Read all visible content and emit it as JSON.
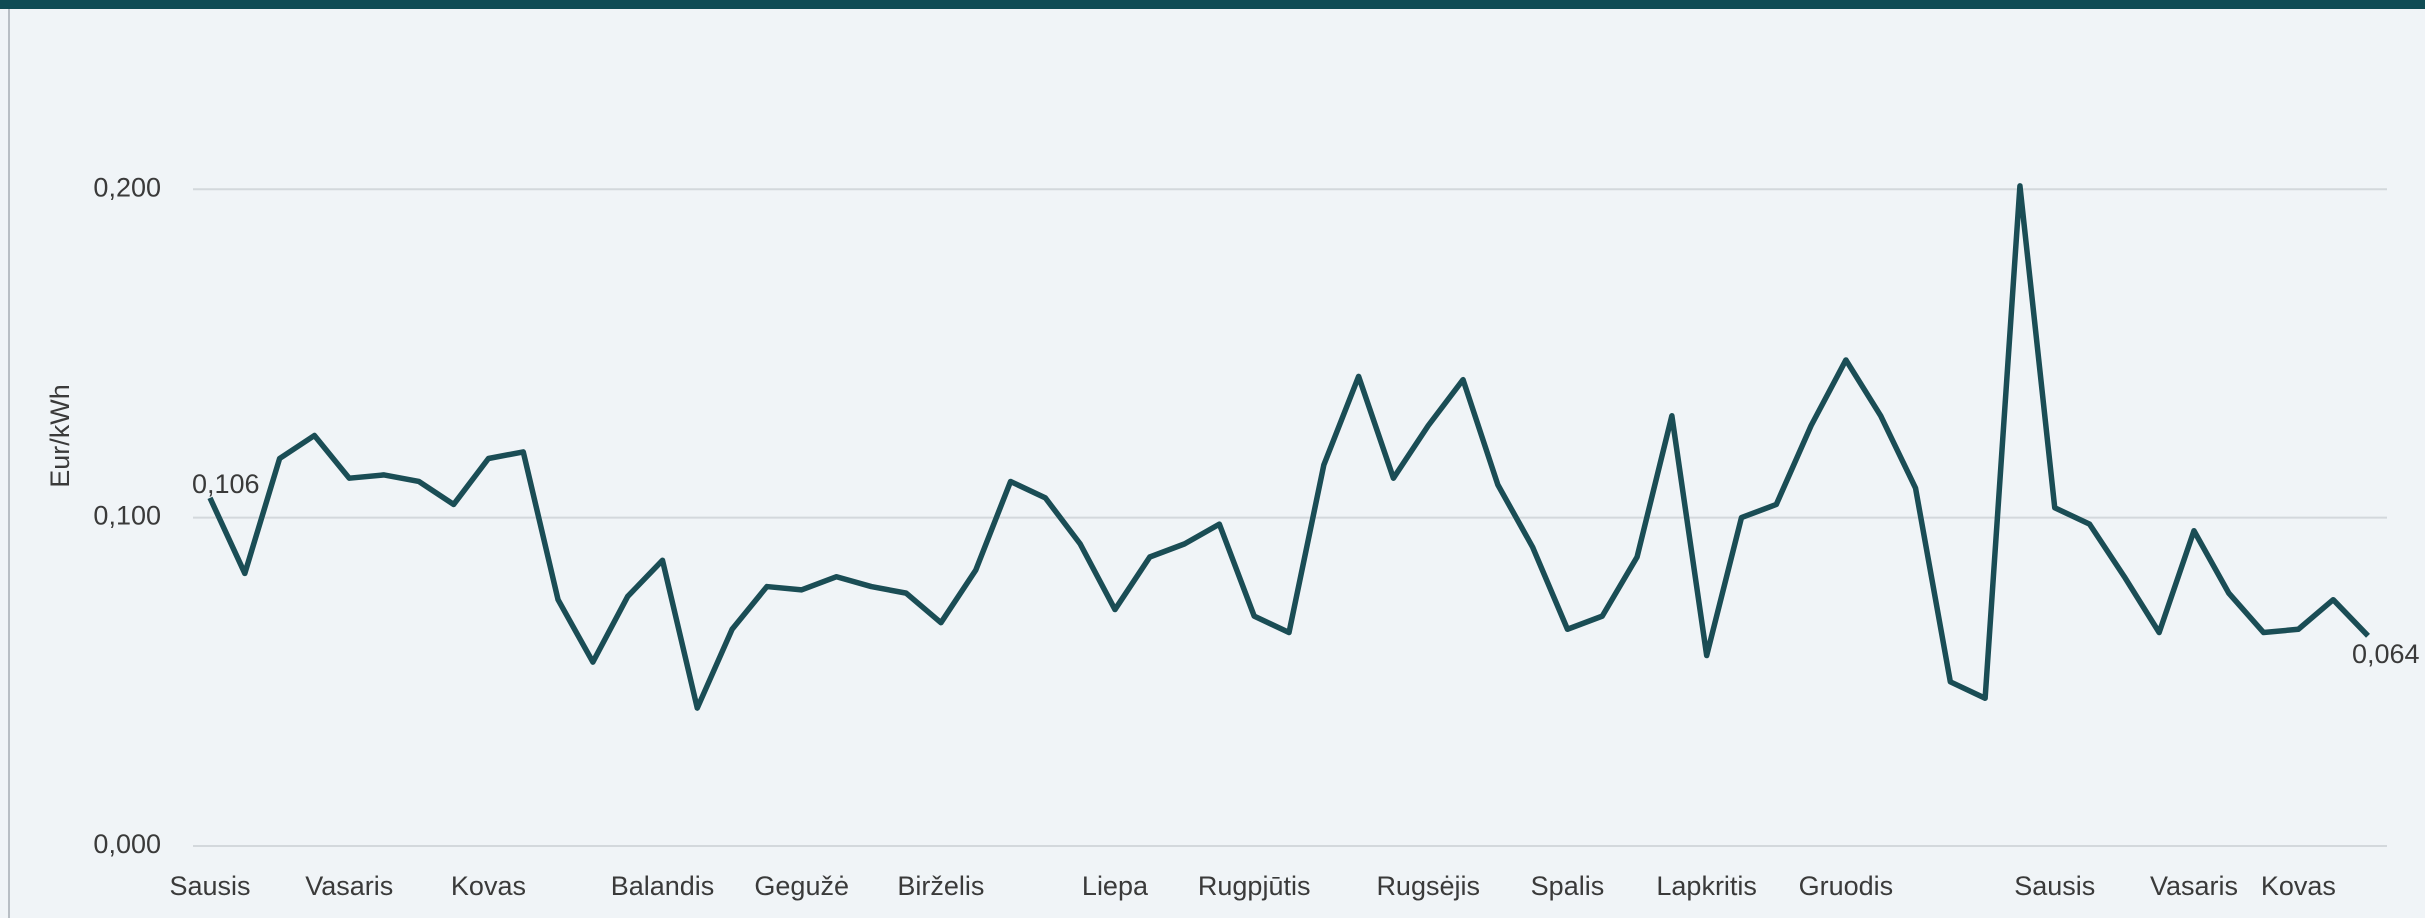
{
  "chart_data": {
    "type": "line",
    "y_label": "Eur/kWh",
    "categories": [
      "Sausis",
      null,
      null,
      null,
      "Vasaris",
      null,
      null,
      null,
      "Kovas",
      null,
      null,
      null,
      null,
      "Balandis",
      null,
      null,
      null,
      "Gegužė",
      null,
      null,
      null,
      "Birželis",
      null,
      null,
      null,
      null,
      "Liepa",
      null,
      null,
      null,
      "Rugpjūtis",
      null,
      null,
      null,
      null,
      "Rugsėjis",
      null,
      null,
      null,
      "Spalis",
      null,
      null,
      null,
      "Lapkritis",
      null,
      null,
      null,
      "Gruodis",
      null,
      null,
      null,
      null,
      null,
      "Sausis",
      null,
      null,
      null,
      "Vasaris",
      null,
      null,
      "Kovas",
      null,
      null
    ],
    "series": [
      {
        "name": "Eur/kWh",
        "color": "#1a4d55",
        "values": [
          0.106,
          0.083,
          0.118,
          0.125,
          0.112,
          0.113,
          0.111,
          0.104,
          0.118,
          0.12,
          0.075,
          0.056,
          0.076,
          0.087,
          0.042,
          0.066,
          0.079,
          0.078,
          0.082,
          0.079,
          0.077,
          0.068,
          0.084,
          0.111,
          0.106,
          0.092,
          0.072,
          0.088,
          0.092,
          0.098,
          0.07,
          0.065,
          0.116,
          0.143,
          0.112,
          0.128,
          0.142,
          0.11,
          0.091,
          0.066,
          0.07,
          0.088,
          0.131,
          0.058,
          0.1,
          0.104,
          0.128,
          0.148,
          0.131,
          0.109,
          0.05,
          0.045,
          0.201,
          0.103,
          0.098,
          0.082,
          0.065,
          0.096,
          0.077,
          0.065,
          0.066,
          0.075,
          0.064
        ],
        "value_labels": [
          "0,106",
          null,
          null,
          null,
          null,
          null,
          null,
          null,
          null,
          null,
          null,
          null,
          null,
          null,
          null,
          null,
          null,
          null,
          null,
          null,
          null,
          null,
          null,
          null,
          null,
          null,
          null,
          null,
          null,
          null,
          null,
          null,
          null,
          null,
          null,
          null,
          null,
          null,
          null,
          null,
          null,
          null,
          null,
          null,
          null,
          null,
          null,
          null,
          null,
          null,
          null,
          null,
          null,
          null,
          null,
          null,
          null,
          null,
          null,
          null,
          null,
          null,
          "0,064"
        ]
      }
    ],
    "ylim": [
      0,
      0.25
    ],
    "yticks": [
      {
        "value": 0,
        "label": "0,000"
      },
      {
        "value": 0.1,
        "label": "0,100"
      },
      {
        "value": 0.2,
        "label": "0,200"
      }
    ],
    "grid": true
  }
}
